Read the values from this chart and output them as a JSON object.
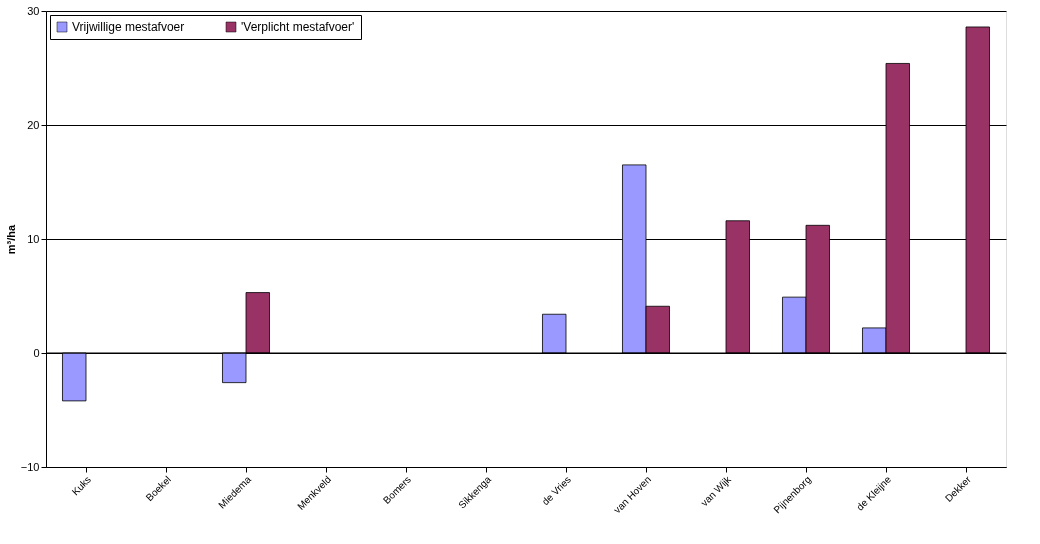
{
  "chart_data": {
    "type": "bar",
    "ylabel": "m³/ha",
    "categories": [
      "Kuks",
      "Boekel",
      "Miedema",
      "Menkveld",
      "Bomers",
      "Sikkenga",
      "de Vries",
      "van Hoven",
      "van Wijk",
      "Pijnenborg",
      "de Kleijne",
      "Dekker"
    ],
    "series": [
      {
        "name": "Vrijwillige mestafvoer",
        "color": "#9999ff",
        "values": [
          -4.2,
          null,
          -2.6,
          null,
          null,
          null,
          3.4,
          16.5,
          null,
          4.9,
          2.2,
          null
        ]
      },
      {
        "name": "'Verplicht mestafvoer'",
        "color": "#993366",
        "values": [
          null,
          null,
          5.3,
          null,
          null,
          null,
          null,
          4.1,
          11.6,
          11.2,
          25.4,
          28.6
        ]
      }
    ],
    "ylim": [
      -10,
      30
    ],
    "yticks": [
      -10,
      0,
      10,
      20,
      30
    ],
    "grid": "y",
    "legend": "top left"
  }
}
